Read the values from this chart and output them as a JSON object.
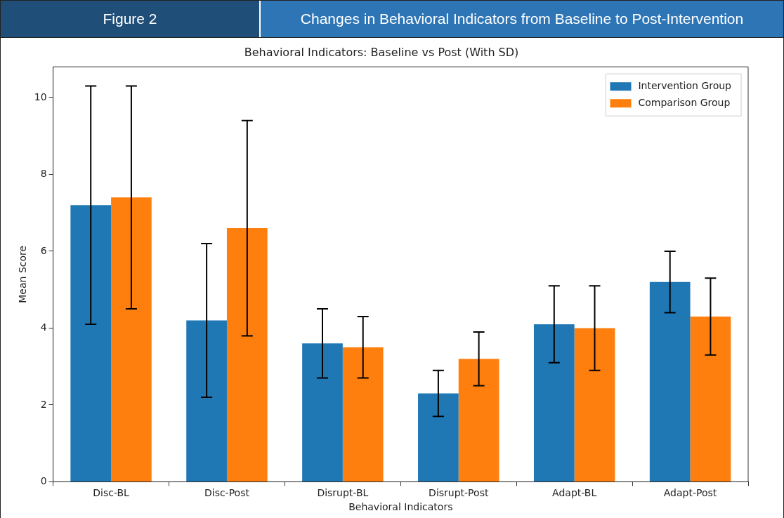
{
  "chart_data": {
    "type": "bar",
    "title": "Behavioral Indicators: Baseline vs Post (With SD)",
    "xlabel": "Behavioral Indicators",
    "ylabel": "Mean Score",
    "annotations": [
      "Figure 2",
      "Changes in Behavioral Indicators from Baseline to Post-Intervention"
    ],
    "categories": [
      "Disc-BL",
      "Disc-Post",
      "Disrupt-BL",
      "Disrupt-Post",
      "Adapt-BL",
      "Adapt-Post"
    ],
    "series": [
      {
        "name": "Intervention Group",
        "color": "#1f77b4",
        "values": [
          7.2,
          4.2,
          3.6,
          2.3,
          4.1,
          5.2
        ],
        "errors": [
          3.1,
          2.0,
          0.9,
          0.6,
          1.0,
          0.8
        ]
      },
      {
        "name": "Comparison Group",
        "color": "#ff7f0e",
        "values": [
          7.4,
          6.6,
          3.5,
          3.2,
          4.0,
          4.3
        ],
        "errors": [
          2.9,
          2.8,
          0.8,
          0.7,
          1.1,
          1.0
        ]
      }
    ],
    "ylim": [
      0,
      10.8
    ],
    "yticks": [
      0,
      2,
      4,
      6,
      8,
      10
    ],
    "grid": false,
    "legend": "top right"
  }
}
